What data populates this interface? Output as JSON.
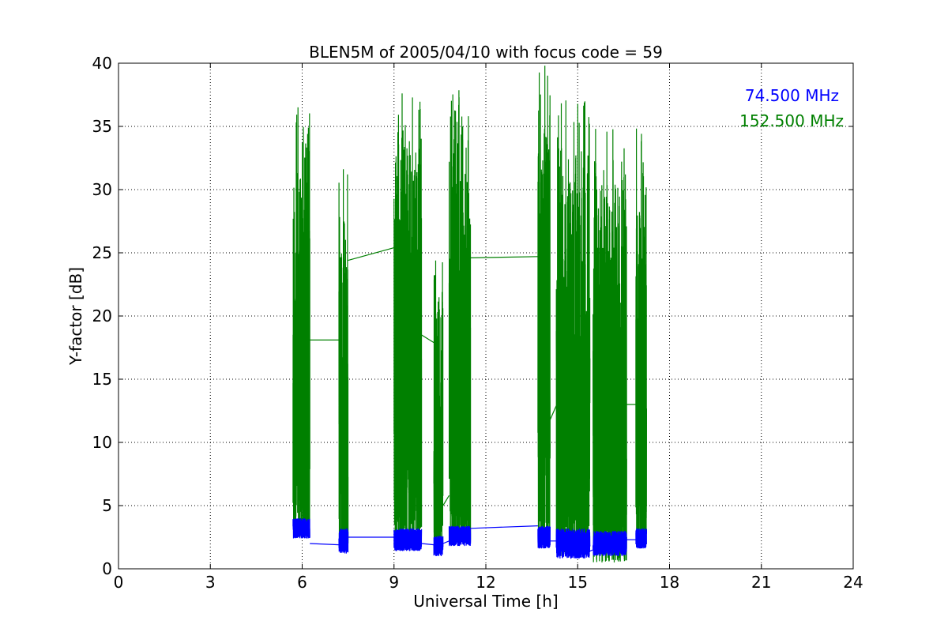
{
  "chart_data": {
    "type": "line",
    "title": "BLEN5M of 2005/04/10 with focus code = 59",
    "xlabel": "Universal Time [h]",
    "ylabel": "Y-factor [dB]",
    "xlim": [
      0,
      24
    ],
    "ylim": [
      0,
      40
    ],
    "xticks": [
      0,
      3,
      6,
      9,
      12,
      15,
      18,
      21,
      24
    ],
    "yticks": [
      0,
      5,
      10,
      15,
      20,
      25,
      30,
      35,
      40
    ],
    "grid": true,
    "legend_placement": "top-right",
    "series": [
      {
        "name": "74.500 MHz",
        "color": "#0000ff",
        "segments": [
          {
            "x_start": 5.7,
            "x_end": 6.25,
            "base": 3.2,
            "amp": 0.8
          },
          {
            "x_start": 7.2,
            "x_end": 7.5,
            "base": 2.2,
            "amp": 1.0
          },
          {
            "x_start": 9.0,
            "x_end": 9.9,
            "base": 2.3,
            "amp": 0.9
          },
          {
            "x_start": 10.3,
            "x_end": 10.6,
            "base": 1.8,
            "amp": 0.8
          },
          {
            "x_start": 10.8,
            "x_end": 11.5,
            "base": 2.6,
            "amp": 0.8
          },
          {
            "x_start": 13.7,
            "x_end": 14.1,
            "base": 2.5,
            "amp": 0.9
          },
          {
            "x_start": 14.3,
            "x_end": 15.4,
            "base": 2.0,
            "amp": 1.2
          },
          {
            "x_start": 15.5,
            "x_end": 16.6,
            "base": 2.0,
            "amp": 1.0
          },
          {
            "x_start": 16.9,
            "x_end": 17.25,
            "base": 2.4,
            "amp": 0.8
          }
        ],
        "connectors": [
          [
            [
              6.25,
              2.0
            ],
            [
              7.2,
              1.9
            ]
          ],
          [
            [
              7.5,
              2.5
            ],
            [
              9.0,
              2.5
            ]
          ],
          [
            [
              9.9,
              2.0
            ],
            [
              10.3,
              1.9
            ]
          ],
          [
            [
              10.6,
              2.0
            ],
            [
              10.8,
              2.2
            ]
          ],
          [
            [
              11.5,
              3.2
            ],
            [
              13.7,
              3.4
            ]
          ],
          [
            [
              14.1,
              2.2
            ],
            [
              14.3,
              2.2
            ]
          ],
          [
            [
              15.4,
              1.4
            ],
            [
              15.5,
              1.5
            ]
          ],
          [
            [
              16.6,
              2.3
            ],
            [
              16.9,
              2.3
            ]
          ]
        ]
      },
      {
        "name": "152.500 MHz",
        "color": "#008000",
        "segments": [
          {
            "x_start": 5.7,
            "x_end": 6.25,
            "low": 2.5,
            "high": 38.3
          },
          {
            "x_start": 7.2,
            "x_end": 7.5,
            "low": 2.0,
            "high": 32.8
          },
          {
            "x_start": 9.0,
            "x_end": 9.9,
            "low": 2.0,
            "high": 38.0
          },
          {
            "x_start": 10.3,
            "x_end": 10.6,
            "low": 2.0,
            "high": 26.0
          },
          {
            "x_start": 10.8,
            "x_end": 11.5,
            "low": 2.0,
            "high": 38.5
          },
          {
            "x_start": 13.7,
            "x_end": 14.1,
            "low": 2.0,
            "high": 40.0
          },
          {
            "x_start": 14.3,
            "x_end": 15.4,
            "low": 1.0,
            "high": 38.0
          },
          {
            "x_start": 15.5,
            "x_end": 16.6,
            "low": 0.5,
            "high": 35.5
          },
          {
            "x_start": 16.9,
            "x_end": 17.25,
            "low": 2.0,
            "high": 35.3
          }
        ],
        "connectors": [
          [
            [
              6.25,
              18.1
            ],
            [
              7.2,
              18.1
            ]
          ],
          [
            [
              7.5,
              24.4
            ],
            [
              9.0,
              25.4
            ]
          ],
          [
            [
              9.9,
              18.5
            ],
            [
              10.3,
              17.9
            ]
          ],
          [
            [
              10.6,
              5.0
            ],
            [
              10.8,
              5.8
            ]
          ],
          [
            [
              11.5,
              24.6
            ],
            [
              13.7,
              24.7
            ]
          ],
          [
            [
              14.1,
              11.8
            ],
            [
              14.3,
              12.9
            ]
          ],
          [
            [
              16.6,
              13.0
            ],
            [
              16.9,
              13.0
            ]
          ]
        ]
      }
    ]
  }
}
